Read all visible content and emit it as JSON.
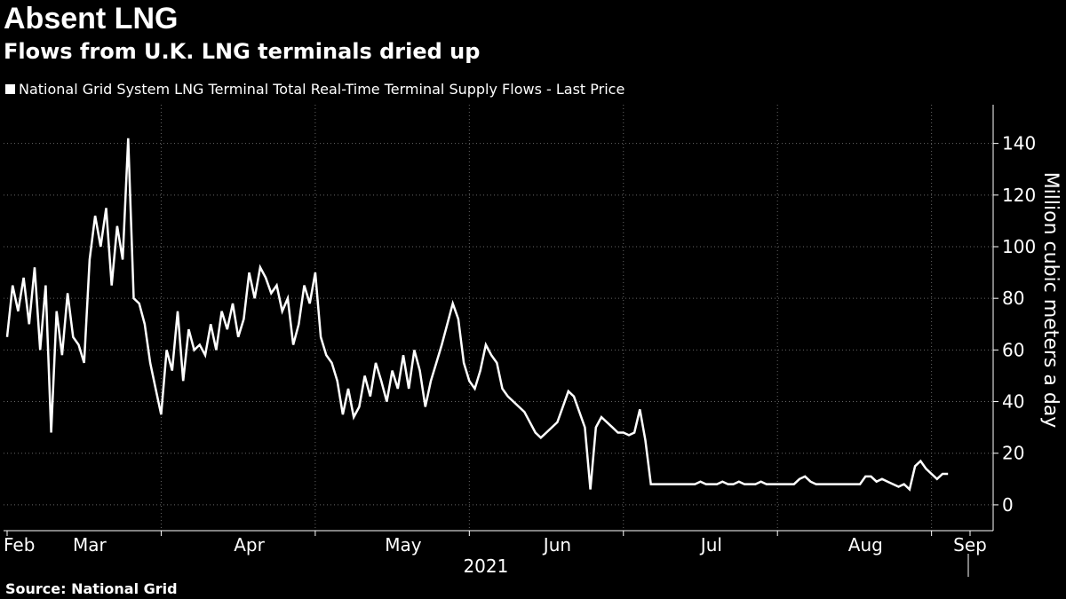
{
  "chart_data": {
    "type": "line",
    "title": "Absent LNG",
    "subtitle": "Flows from U.K. LNG terminals dried up",
    "legend": "National Grid System LNG Terminal Total Real-Time Terminal Supply Flows - Last Price",
    "ylabel": "Million cubic meters a day",
    "year_label": "2021",
    "source": "Source: National Grid",
    "ylim": [
      -10,
      155
    ],
    "y_ticks": [
      0,
      20,
      40,
      60,
      80,
      100,
      120,
      140
    ],
    "x_ticks": [
      "Feb",
      "Mar",
      "Apr",
      "May",
      "Jun",
      "Jul",
      "Aug",
      "Sep"
    ],
    "line_color": "#ffffff",
    "series": [
      {
        "name": "National Grid System LNG Terminal Total Real-Time Terminal Supply Flows - Last Price",
        "points": [
          [
            0,
            65
          ],
          [
            1,
            85
          ],
          [
            2,
            75
          ],
          [
            3,
            88
          ],
          [
            4,
            70
          ],
          [
            5,
            92
          ],
          [
            6,
            60
          ],
          [
            7,
            85
          ],
          [
            8,
            28
          ],
          [
            9,
            75
          ],
          [
            10,
            58
          ],
          [
            11,
            82
          ],
          [
            12,
            65
          ],
          [
            13,
            62
          ],
          [
            14,
            55
          ],
          [
            15,
            95
          ],
          [
            16,
            112
          ],
          [
            17,
            100
          ],
          [
            18,
            115
          ],
          [
            19,
            85
          ],
          [
            20,
            108
          ],
          [
            21,
            95
          ],
          [
            22,
            142
          ],
          [
            23,
            80
          ],
          [
            24,
            78
          ],
          [
            25,
            70
          ],
          [
            26,
            55
          ],
          [
            27,
            45
          ],
          [
            28,
            35
          ],
          [
            29,
            60
          ],
          [
            30,
            52
          ],
          [
            31,
            75
          ],
          [
            32,
            48
          ],
          [
            33,
            68
          ],
          [
            34,
            60
          ],
          [
            35,
            62
          ],
          [
            36,
            58
          ],
          [
            37,
            70
          ],
          [
            38,
            60
          ],
          [
            39,
            75
          ],
          [
            40,
            68
          ],
          [
            41,
            78
          ],
          [
            42,
            65
          ],
          [
            43,
            72
          ],
          [
            44,
            90
          ],
          [
            45,
            80
          ],
          [
            46,
            92
          ],
          [
            47,
            88
          ],
          [
            48,
            82
          ],
          [
            49,
            85
          ],
          [
            50,
            75
          ],
          [
            51,
            80
          ],
          [
            52,
            62
          ],
          [
            53,
            70
          ],
          [
            54,
            85
          ],
          [
            55,
            78
          ],
          [
            56,
            90
          ],
          [
            57,
            65
          ],
          [
            58,
            58
          ],
          [
            59,
            55
          ],
          [
            60,
            48
          ],
          [
            61,
            35
          ],
          [
            62,
            45
          ],
          [
            63,
            34
          ],
          [
            64,
            38
          ],
          [
            65,
            50
          ],
          [
            66,
            42
          ],
          [
            67,
            55
          ],
          [
            68,
            48
          ],
          [
            69,
            40
          ],
          [
            70,
            52
          ],
          [
            71,
            45
          ],
          [
            72,
            58
          ],
          [
            73,
            45
          ],
          [
            74,
            60
          ],
          [
            75,
            52
          ],
          [
            76,
            38
          ],
          [
            77,
            48
          ],
          [
            78,
            55
          ],
          [
            79,
            62
          ],
          [
            80,
            70
          ],
          [
            81,
            78
          ],
          [
            82,
            72
          ],
          [
            83,
            55
          ],
          [
            84,
            48
          ],
          [
            85,
            45
          ],
          [
            86,
            52
          ],
          [
            87,
            62
          ],
          [
            88,
            58
          ],
          [
            89,
            55
          ],
          [
            90,
            45
          ],
          [
            91,
            42
          ],
          [
            92,
            40
          ],
          [
            93,
            38
          ],
          [
            94,
            36
          ],
          [
            95,
            32
          ],
          [
            96,
            28
          ],
          [
            97,
            26
          ],
          [
            98,
            28
          ],
          [
            99,
            30
          ],
          [
            100,
            32
          ],
          [
            101,
            38
          ],
          [
            102,
            44
          ],
          [
            103,
            42
          ],
          [
            104,
            36
          ],
          [
            105,
            30
          ],
          [
            106,
            6
          ],
          [
            107,
            30
          ],
          [
            108,
            34
          ],
          [
            109,
            32
          ],
          [
            110,
            30
          ],
          [
            111,
            28
          ],
          [
            112,
            28
          ],
          [
            113,
            27
          ],
          [
            114,
            28
          ],
          [
            115,
            37
          ],
          [
            116,
            25
          ],
          [
            117,
            8
          ],
          [
            118,
            8
          ],
          [
            119,
            8
          ],
          [
            120,
            8
          ],
          [
            121,
            8
          ],
          [
            122,
            8
          ],
          [
            123,
            8
          ],
          [
            124,
            8
          ],
          [
            125,
            8
          ],
          [
            126,
            9
          ],
          [
            127,
            8
          ],
          [
            128,
            8
          ],
          [
            129,
            8
          ],
          [
            130,
            9
          ],
          [
            131,
            8
          ],
          [
            132,
            8
          ],
          [
            133,
            9
          ],
          [
            134,
            8
          ],
          [
            135,
            8
          ],
          [
            136,
            8
          ],
          [
            137,
            9
          ],
          [
            138,
            8
          ],
          [
            139,
            8
          ],
          [
            140,
            8
          ],
          [
            141,
            8
          ],
          [
            142,
            8
          ],
          [
            143,
            8
          ],
          [
            144,
            10
          ],
          [
            145,
            11
          ],
          [
            146,
            9
          ],
          [
            147,
            8
          ],
          [
            148,
            8
          ],
          [
            149,
            8
          ],
          [
            150,
            8
          ],
          [
            151,
            8
          ],
          [
            152,
            8
          ],
          [
            153,
            8
          ],
          [
            154,
            8
          ],
          [
            155,
            8
          ],
          [
            156,
            11
          ],
          [
            157,
            11
          ],
          [
            158,
            9
          ],
          [
            159,
            10
          ],
          [
            160,
            9
          ],
          [
            161,
            8
          ],
          [
            162,
            7
          ],
          [
            163,
            8
          ],
          [
            164,
            6
          ],
          [
            165,
            15
          ],
          [
            166,
            17
          ],
          [
            167,
            14
          ],
          [
            168,
            12
          ],
          [
            169,
            10
          ],
          [
            170,
            12
          ],
          [
            171,
            12
          ]
        ]
      }
    ],
    "x_domain": [
      0,
      175
    ],
    "x_tick_positions": [
      0,
      28,
      56,
      84,
      112,
      140,
      168,
      175
    ],
    "x_label_positions": [
      0,
      15,
      44,
      72,
      100,
      128,
      156,
      175
    ]
  }
}
